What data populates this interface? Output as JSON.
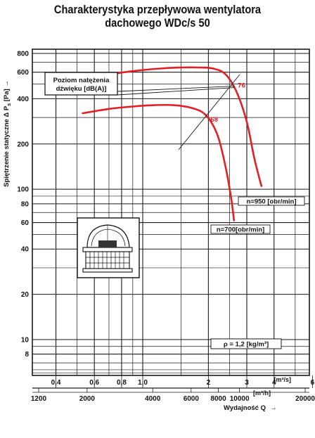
{
  "chart_data": {
    "type": "line",
    "title_lines": [
      "Charakterystyka przepływowa wentylatora",
      "dachowego WDc/s 50"
    ],
    "ylabel": "Spiętrzenie statyczne Δ P",
    "ylabel_sub": "s",
    "ylabel_unit": "[Pa]",
    "ylabel_arrow": "→",
    "xlabel": "Wydajność Q",
    "xlabel_arrow": "→",
    "x_unit_m3s": "[m³/s]",
    "x_unit_m3h": "[m³/h]",
    "y_scale": "log",
    "x_scale": "log",
    "ylim": [
      5,
      800
    ],
    "xlim_m3s": [
      0.28,
      6.4
    ],
    "y_ticks": [
      8,
      10,
      20,
      40,
      60,
      80,
      100,
      200,
      400,
      600,
      800
    ],
    "y_tick_labels": [
      "8",
      "10",
      "20",
      "40",
      "60",
      "80",
      "100",
      "200",
      "400",
      "600",
      "800"
    ],
    "x_ticks_m3s": [
      0.4,
      0.6,
      0.8,
      1.0,
      2,
      3,
      4,
      6
    ],
    "x_tick_labels_m3s": [
      "0,4",
      "0,6",
      "0,8",
      "1,0",
      "2",
      "3",
      "4",
      "6"
    ],
    "x_ticks_m3h": [
      1200,
      2000,
      4000,
      6000,
      8000,
      10000,
      20000
    ],
    "x_tick_labels_m3h": [
      "1200",
      "2000",
      "4000",
      "6000",
      "8000",
      "10000",
      "20000"
    ],
    "series": [
      {
        "name": "n=950 [obr/min]",
        "x_m3s": [
          0.7,
          0.9,
          1.2,
          1.5,
          1.8,
          2.1,
          2.4,
          2.7,
          3.0,
          3.25,
          3.5
        ],
        "y": [
          580,
          610,
          635,
          645,
          645,
          635,
          580,
          440,
          280,
          160,
          105
        ]
      },
      {
        "name": "n=700[obr/min]",
        "x_m3s": [
          0.53,
          0.7,
          0.9,
          1.1,
          1.4,
          1.7,
          1.95,
          2.2,
          2.4,
          2.55,
          2.62
        ],
        "y": [
          320,
          342,
          355,
          362,
          362,
          345,
          310,
          230,
          140,
          85,
          62
        ]
      }
    ],
    "noise_label": "Poziom natężenia dźwięku [dB(A)]",
    "noise_label_lines": [
      "Poziom natężenia",
      "dźwięku [dB(A)]"
    ],
    "noise_points": [
      {
        "label": "76",
        "x_m3s": 2.67,
        "y": 490
      },
      {
        "label": "68",
        "x_m3s": 2.0,
        "y": 290
      }
    ],
    "density_label": "ρ = 1,2 [kg/m³]"
  },
  "colors": {
    "curve": "#e31e24",
    "grid": "#1a1a1a",
    "text": "#111111"
  }
}
